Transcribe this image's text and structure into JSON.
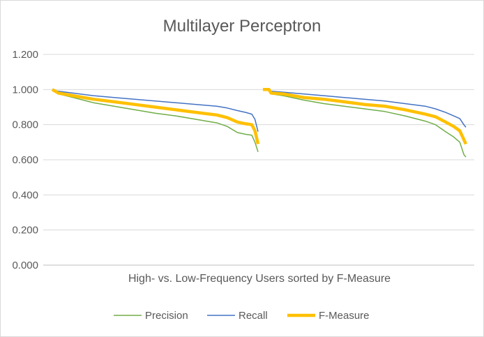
{
  "chart_data": {
    "type": "line",
    "title": "Multilayer Perceptron",
    "xlabel": "High- vs. Low-Frequency Users sorted by F-Measure",
    "ylabel": "",
    "ylim": [
      0,
      1.2
    ],
    "y_ticks": [
      "0.000",
      "0.200",
      "0.400",
      "0.600",
      "0.800",
      "1.000",
      "1.200"
    ],
    "grid": true,
    "legend_position": "bottom",
    "segments": [
      {
        "x": [
          0,
          0.03,
          0.1,
          0.2,
          0.3,
          0.4,
          0.5,
          0.6,
          0.7,
          0.8,
          0.85,
          0.9,
          0.94,
          0.97,
          0.985,
          1.0
        ],
        "Precision": [
          1.0,
          0.975,
          0.955,
          0.925,
          0.905,
          0.885,
          0.865,
          0.85,
          0.83,
          0.81,
          0.79,
          0.755,
          0.745,
          0.74,
          0.7,
          0.645
        ],
        "Recall": [
          1.0,
          0.99,
          0.98,
          0.965,
          0.955,
          0.945,
          0.935,
          0.925,
          0.915,
          0.905,
          0.895,
          0.88,
          0.87,
          0.86,
          0.83,
          0.76
        ],
        "F-Measure": [
          1.0,
          0.98,
          0.965,
          0.945,
          0.93,
          0.915,
          0.9,
          0.885,
          0.87,
          0.855,
          0.84,
          0.815,
          0.805,
          0.8,
          0.765,
          0.69
        ]
      },
      {
        "x": [
          0,
          0.03,
          0.04,
          0.1,
          0.2,
          0.3,
          0.4,
          0.5,
          0.6,
          0.7,
          0.8,
          0.85,
          0.9,
          0.94,
          0.97,
          0.99,
          1.0
        ],
        "Precision": [
          1.0,
          1.0,
          0.975,
          0.965,
          0.94,
          0.92,
          0.905,
          0.89,
          0.875,
          0.85,
          0.82,
          0.8,
          0.76,
          0.73,
          0.7,
          0.63,
          0.615
        ],
        "Recall": [
          1.0,
          1.0,
          0.99,
          0.985,
          0.975,
          0.965,
          0.955,
          0.945,
          0.935,
          0.92,
          0.905,
          0.89,
          0.87,
          0.85,
          0.835,
          0.8,
          0.785
        ],
        "F-Measure": [
          1.0,
          1.0,
          0.98,
          0.975,
          0.955,
          0.945,
          0.93,
          0.915,
          0.905,
          0.885,
          0.86,
          0.845,
          0.815,
          0.79,
          0.765,
          0.715,
          0.69
        ]
      }
    ],
    "series": [
      {
        "name": "Precision",
        "color": "#70ad47"
      },
      {
        "name": "Recall",
        "color": "#4472c4"
      },
      {
        "name": "F-Measure",
        "color": "#ffc000"
      }
    ]
  }
}
